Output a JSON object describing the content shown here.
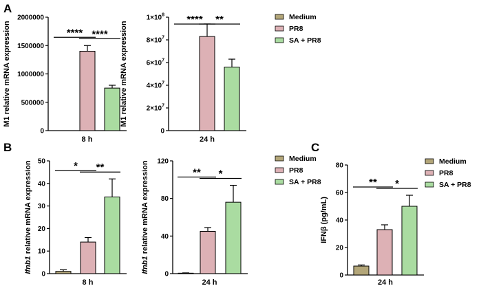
{
  "panels": [
    {
      "label": "A"
    },
    {
      "label": "B"
    },
    {
      "label": "C"
    }
  ],
  "legend": {
    "entries": [
      {
        "name": "Medium",
        "color": "#b3a679"
      },
      {
        "name": "PR8",
        "color": "#ddb1b5"
      },
      {
        "name": "SA + PR8",
        "color": "#aadca1"
      }
    ]
  },
  "chart_data": [
    {
      "type": "bar",
      "panel": "A",
      "ylabel": "M1 relative mRNA expression",
      "categories": [
        "Medium",
        "PR8",
        "SA + PR8"
      ],
      "values": [
        0,
        1400000,
        750000
      ],
      "errors": [
        0,
        100000,
        50000
      ],
      "xlabel": "8 h",
      "ylim": [
        0,
        2000000
      ],
      "yticks": [
        0,
        500000,
        1000000,
        1500000,
        2000000
      ],
      "ytick_labels": [
        "0",
        "500000",
        "1000000",
        "1500000",
        "2000000"
      ],
      "significance": [
        {
          "from": 0,
          "to": 1,
          "label": "****"
        },
        {
          "from": 1,
          "to": 2,
          "label": "****"
        }
      ]
    },
    {
      "type": "bar",
      "panel": "A",
      "ylabel": "M1 relative mRNA expression",
      "categories": [
        "Medium",
        "PR8",
        "SA + PR8"
      ],
      "values": [
        0,
        83000000,
        56000000
      ],
      "errors": [
        0,
        11000000,
        7000000
      ],
      "xlabel": "24 h",
      "ylim": [
        0,
        100000000
      ],
      "yticks": [
        0,
        20000000,
        40000000,
        60000000,
        80000000,
        100000000
      ],
      "ytick_labels": [
        "0",
        "2×10",
        "4×10",
        "6×10",
        "8×10",
        "1×10"
      ],
      "ytick_exponents": [
        "",
        "7",
        "7",
        "7",
        "7",
        "8"
      ],
      "significance": [
        {
          "from": 0,
          "to": 1,
          "label": "****"
        },
        {
          "from": 1,
          "to": 2,
          "label": "**"
        }
      ]
    },
    {
      "type": "bar",
      "panel": "B",
      "ylabel_italic": "Ifnb1",
      "ylabel": " relative mRNA expression",
      "categories": [
        "Medium",
        "PR8",
        "SA + PR8"
      ],
      "values": [
        1,
        14,
        34
      ],
      "errors": [
        0.7,
        2,
        8
      ],
      "xlabel": "8 h",
      "ylim": [
        0,
        50
      ],
      "yticks": [
        0,
        10,
        20,
        30,
        40,
        50
      ],
      "ytick_labels": [
        "0",
        "10",
        "20",
        "30",
        "40",
        "50"
      ],
      "significance": [
        {
          "from": 0,
          "to": 1,
          "label": "*"
        },
        {
          "from": 1,
          "to": 2,
          "label": "**"
        }
      ]
    },
    {
      "type": "bar",
      "panel": "B",
      "ylabel_italic": "Ifnb1",
      "ylabel": " relative mRNA expression",
      "categories": [
        "Medium",
        "PR8",
        "SA + PR8"
      ],
      "values": [
        0.5,
        45,
        76
      ],
      "errors": [
        0.3,
        4,
        18
      ],
      "xlabel": "24 h",
      "ylim": [
        0,
        120
      ],
      "yticks": [
        0,
        40,
        80,
        120
      ],
      "ytick_labels": [
        "0",
        "40",
        "80",
        "120"
      ],
      "significance": [
        {
          "from": 0,
          "to": 1,
          "label": "**"
        },
        {
          "from": 1,
          "to": 2,
          "label": "*"
        }
      ]
    },
    {
      "type": "bar",
      "panel": "C",
      "ylabel": "IFNβ (pg/mL)",
      "categories": [
        "Medium",
        "PR8",
        "SA + PR8"
      ],
      "values": [
        6.5,
        33,
        50
      ],
      "errors": [
        0.8,
        3.5,
        8
      ],
      "xlabel": "24 h",
      "ylim": [
        0,
        80
      ],
      "yticks": [
        0,
        20,
        40,
        60,
        80
      ],
      "ytick_labels": [
        "0",
        "20",
        "40",
        "60",
        "80"
      ],
      "significance": [
        {
          "from": 0,
          "to": 1,
          "label": "**"
        },
        {
          "from": 1,
          "to": 2,
          "label": "*"
        }
      ]
    }
  ]
}
